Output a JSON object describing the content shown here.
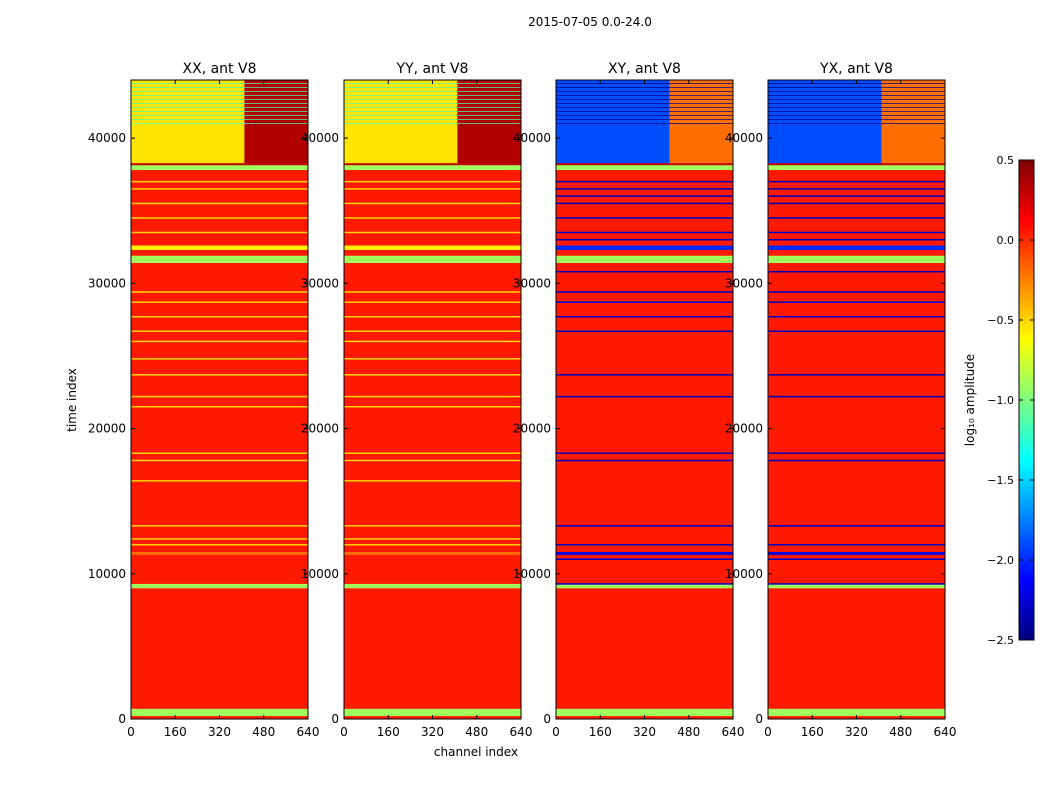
{
  "figure": {
    "suptitle": "2015-07-05 0.0-24.0",
    "xlabel": "channel index",
    "ylabel": "time index"
  },
  "colors": {
    "jet": [
      "#00007f",
      "#0000ff",
      "#007fff",
      "#00ffff",
      "#7fff7f",
      "#ffff00",
      "#ff7f00",
      "#ff0000",
      "#7f0000"
    ]
  },
  "chart_data": [
    {
      "type": "heatmap",
      "title": "XX, ant V8",
      "xlim": [
        0,
        640
      ],
      "ylim": [
        0,
        44000
      ],
      "xticks": [
        0,
        160,
        320,
        480,
        640
      ],
      "yticks": [
        0,
        10000,
        20000,
        30000,
        40000
      ],
      "base_value": 0.05,
      "top_region": {
        "from": 38200,
        "to": 44000,
        "value": -0.55,
        "hot_from_channel": 410,
        "hot_value": 0.35
      },
      "bands": [
        {
          "from": 200,
          "to": 700,
          "value": -0.9
        },
        {
          "from": 9000,
          "to": 9300,
          "value": -0.9
        },
        {
          "from": 11300,
          "to": 11500,
          "value": -0.2
        },
        {
          "from": 31400,
          "to": 31900,
          "value": -0.9
        },
        {
          "from": 32300,
          "to": 32600,
          "value": -0.6
        },
        {
          "from": 37800,
          "to": 38200,
          "value": -0.9
        }
      ],
      "lines": [
        12000,
        12400,
        13300,
        16400,
        17800,
        18300,
        21500,
        22200,
        23700,
        24800,
        26000,
        26700,
        27700,
        28700,
        29400,
        33500,
        34500,
        35500,
        36500,
        37000
      ],
      "line_value": -0.5
    },
    {
      "type": "heatmap",
      "title": "YY, ant V8",
      "xlim": [
        0,
        640
      ],
      "ylim": [
        0,
        44000
      ],
      "xticks": [
        0,
        160,
        320,
        480,
        640
      ],
      "yticks": [
        0,
        10000,
        20000,
        30000,
        40000
      ],
      "base_value": 0.05,
      "top_region": {
        "from": 38200,
        "to": 44000,
        "value": -0.55,
        "hot_from_channel": 410,
        "hot_value": 0.35
      },
      "bands": [
        {
          "from": 200,
          "to": 700,
          "value": -0.9
        },
        {
          "from": 9000,
          "to": 9300,
          "value": -0.9
        },
        {
          "from": 11300,
          "to": 11500,
          "value": -0.2
        },
        {
          "from": 31400,
          "to": 31900,
          "value": -0.9
        },
        {
          "from": 32300,
          "to": 32600,
          "value": -0.6
        },
        {
          "from": 37800,
          "to": 38200,
          "value": -0.9
        }
      ],
      "lines": [
        12000,
        12400,
        13300,
        16400,
        17800,
        18300,
        21500,
        22200,
        23700,
        24800,
        26000,
        26700,
        27700,
        28700,
        29400,
        33500,
        34500,
        35500,
        36500,
        37000
      ],
      "line_value": -0.5
    },
    {
      "type": "heatmap",
      "title": "XY, ant V8",
      "xlim": [
        0,
        640
      ],
      "ylim": [
        0,
        44000
      ],
      "xticks": [
        0,
        160,
        320,
        480,
        640
      ],
      "yticks": [
        0,
        10000,
        20000,
        30000,
        40000
      ],
      "base_value": 0.05,
      "top_region": {
        "from": 38200,
        "to": 44000,
        "value": -1.9,
        "hot_from_channel": 410,
        "hot_value": -0.2
      },
      "bands": [
        {
          "from": 200,
          "to": 700,
          "value": -0.9
        },
        {
          "from": 9000,
          "to": 9300,
          "value": -0.9
        },
        {
          "from": 11300,
          "to": 11500,
          "value": -2.2
        },
        {
          "from": 31400,
          "to": 31900,
          "value": -0.9
        },
        {
          "from": 32300,
          "to": 32600,
          "value": -2.0
        },
        {
          "from": 37800,
          "to": 38200,
          "value": -0.9
        }
      ],
      "lines": [
        9300,
        11000,
        12000,
        13300,
        17800,
        18300,
        22200,
        23700,
        26700,
        27700,
        28700,
        29400,
        30800,
        33000,
        33500,
        34500,
        35500,
        36000,
        36500,
        37000
      ],
      "line_value": -2.3
    },
    {
      "type": "heatmap",
      "title": "YX, ant V8",
      "xlim": [
        0,
        640
      ],
      "ylim": [
        0,
        44000
      ],
      "xticks": [
        0,
        160,
        320,
        480,
        640
      ],
      "yticks": [
        0,
        10000,
        20000,
        30000,
        40000
      ],
      "base_value": 0.05,
      "top_region": {
        "from": 38200,
        "to": 44000,
        "value": -1.9,
        "hot_from_channel": 410,
        "hot_value": -0.2
      },
      "bands": [
        {
          "from": 200,
          "to": 700,
          "value": -0.9
        },
        {
          "from": 9000,
          "to": 9300,
          "value": -0.9
        },
        {
          "from": 11300,
          "to": 11500,
          "value": -2.2
        },
        {
          "from": 31400,
          "to": 31900,
          "value": -0.9
        },
        {
          "from": 32300,
          "to": 32600,
          "value": -2.0
        },
        {
          "from": 37800,
          "to": 38200,
          "value": -0.9
        }
      ],
      "lines": [
        9300,
        11000,
        12000,
        13300,
        17800,
        18300,
        22200,
        23700,
        26700,
        27700,
        28700,
        29400,
        30800,
        33000,
        33500,
        34500,
        35500,
        36000,
        36500,
        37000
      ],
      "line_value": -2.3
    }
  ],
  "colorbar": {
    "label": "log₁₀ amplitude",
    "range": [
      -2.5,
      0.5
    ],
    "ticks": [
      0.5,
      0.0,
      -0.5,
      -1.0,
      -1.5,
      -2.0,
      -2.5
    ],
    "tick_labels": [
      "0.5",
      "0.0",
      "−0.5",
      "−1.0",
      "−1.5",
      "−2.0",
      "−2.5"
    ]
  }
}
